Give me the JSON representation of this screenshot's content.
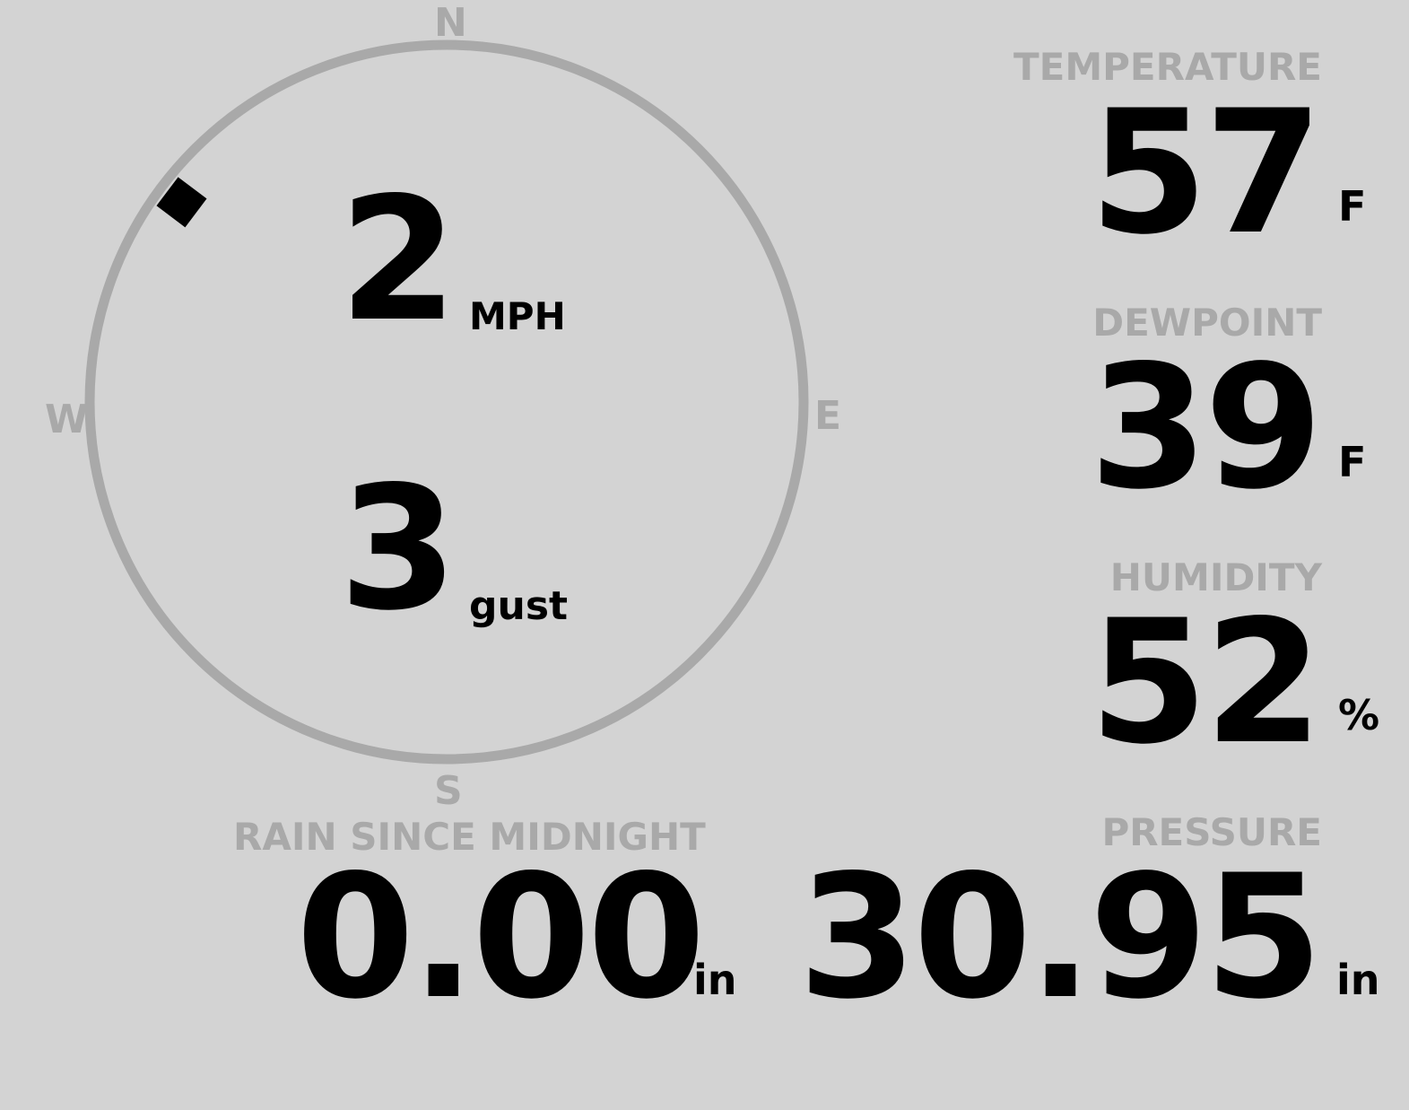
{
  "wind": {
    "compass": {
      "n": "N",
      "e": "E",
      "s": "S",
      "w": "W"
    },
    "direction_deg": 307,
    "speed": "2",
    "speed_unit": "MPH",
    "gust": "3",
    "gust_unit": "gust"
  },
  "temperature": {
    "label": "TEMPERATURE",
    "value": "57",
    "unit": "F"
  },
  "dewpoint": {
    "label": "DEWPOINT",
    "value": "39",
    "unit": "F"
  },
  "humidity": {
    "label": "HUMIDITY",
    "value": "52",
    "unit": "%"
  },
  "rain": {
    "label": "RAIN SINCE MIDNIGHT",
    "value": "0.00",
    "unit": "in"
  },
  "pressure": {
    "label": "PRESSURE",
    "value": "30.95",
    "unit": "in"
  },
  "colors": {
    "background": "#d3d3d3",
    "label": "#a9a9a9",
    "value": "#000000"
  }
}
